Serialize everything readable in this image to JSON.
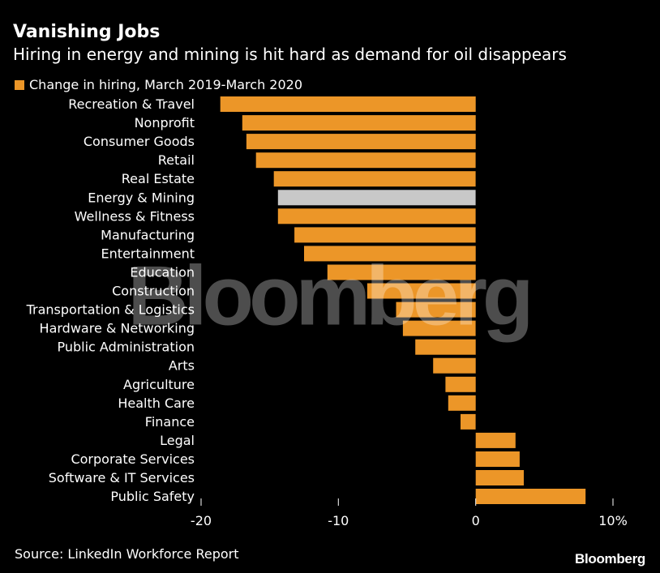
{
  "header": {
    "title": "Vanishing Jobs",
    "subtitle": "Hiring in energy and mining is hit hard as demand for oil disappears"
  },
  "footer": {
    "source": "Source: LinkedIn Workforce Report",
    "brand": "Bloomberg"
  },
  "watermark": "Bloomberg",
  "colors": {
    "background": "#000000",
    "bar": "#ec9628",
    "highlight_bar": "#c8c8c8",
    "text": "#ffffff",
    "axis_tick": "#ffffff"
  },
  "chart_data": {
    "type": "bar",
    "orientation": "horizontal",
    "legend": [
      "Change in hiring, March 2019-March 2020"
    ],
    "legend_position": "top-left",
    "categories": [
      "Recreation & Travel",
      "Nonprofit",
      "Consumer Goods",
      "Retail",
      "Real Estate",
      "Energy & Mining",
      "Wellness & Fitness",
      "Manufacturing",
      "Entertainment",
      "Education",
      "Construction",
      "Transportation & Logistics",
      "Hardware & Networking",
      "Public Administration",
      "Arts",
      "Agriculture",
      "Health Care",
      "Finance",
      "Legal",
      "Corporate Services",
      "Software & IT Services",
      "Public Safety"
    ],
    "series": [
      {
        "name": "Change in hiring, March 2019-March 2020",
        "values": [
          -18.6,
          -17.0,
          -16.7,
          -16.0,
          -14.7,
          -14.4,
          -14.4,
          -13.2,
          -12.5,
          -10.8,
          -7.9,
          -5.8,
          -5.3,
          -4.4,
          -3.1,
          -2.2,
          -2.0,
          -1.1,
          2.9,
          3.2,
          3.5,
          8.0
        ]
      }
    ],
    "highlight_category": "Energy & Mining",
    "xlim": [
      -20,
      10
    ],
    "x_ticks": [
      -20,
      -10,
      0,
      10
    ],
    "x_tick_labels": [
      "-20",
      "-10",
      "0",
      "10%"
    ],
    "grid": false
  }
}
